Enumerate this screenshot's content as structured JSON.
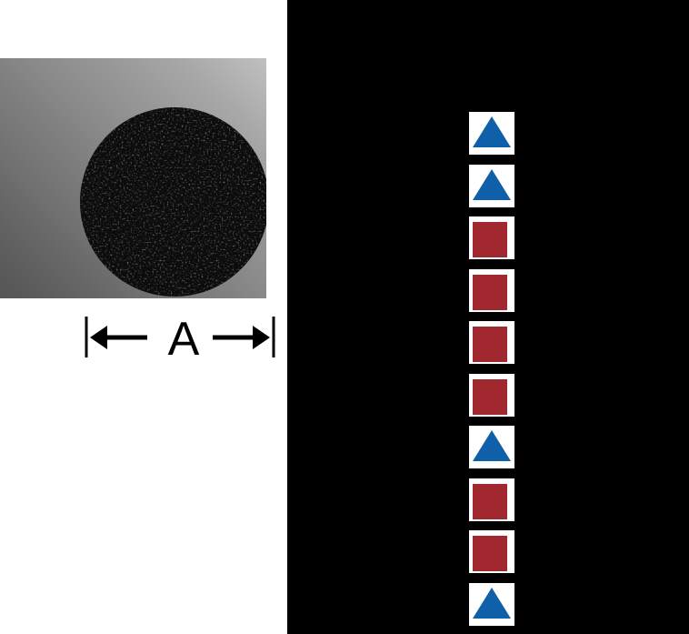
{
  "figure": {
    "dimension_label": "A",
    "photo_alt": "black round cord cross-section on gray background"
  },
  "icon_column": {
    "items": [
      {
        "icon": "triangle-up"
      },
      {
        "icon": "triangle-up"
      },
      {
        "icon": "square"
      },
      {
        "icon": "square"
      },
      {
        "icon": "square"
      },
      {
        "icon": "square"
      },
      {
        "icon": "triangle-up"
      },
      {
        "icon": "square"
      },
      {
        "icon": "square"
      },
      {
        "icon": "triangle-up"
      }
    ]
  },
  "colors": {
    "triangle_blue": "#0f60a8",
    "square_red": "#a1282e",
    "panel_background": "#000000",
    "cord_black": "#0c0c0c"
  }
}
